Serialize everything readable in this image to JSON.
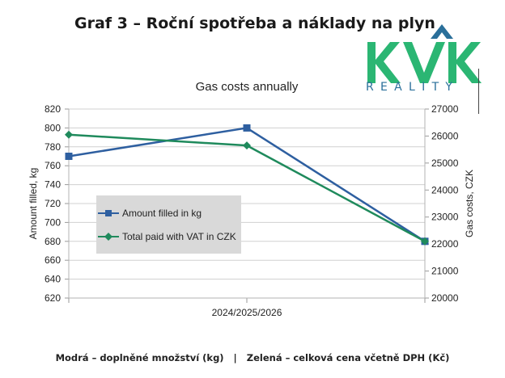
{
  "page": {
    "title": "Graf 3 – Roční spotřeba a náklady na plyn",
    "caption": "Modrá – doplněné množství (kg)   |   Zelená – celková cena včetně DPH (Kč)"
  },
  "logo": {
    "text": "KVK",
    "sub": "REALITY",
    "colors": {
      "green": "#2bb673",
      "blue": "#2a6f9a"
    }
  },
  "colors": {
    "amount": "#2e5fa0",
    "paid": "#1f8a5c",
    "grid": "#d0d0d0",
    "legend_bg": "#d9d9d9"
  },
  "chart_data": {
    "type": "line",
    "title": "Gas costs annually",
    "categories": [
      "",
      "2024/2025/2026",
      ""
    ],
    "xlabel": "",
    "ylabel": "Amount filled, kg",
    "y2label": "Gas costs, CZK",
    "ylim": [
      620,
      820
    ],
    "y2lim": [
      20000,
      27000
    ],
    "yticks": [
      "620",
      "640",
      "660",
      "680",
      "700",
      "720",
      "740",
      "760",
      "780",
      "800",
      "820"
    ],
    "y2ticks": [
      "20000",
      "21000",
      "22000",
      "23000",
      "24000",
      "25000",
      "26000",
      "27000"
    ],
    "grid": true,
    "legend_position": "inside-left",
    "series": [
      {
        "name": "Amount filled in kg",
        "axis": "left",
        "marker": "square",
        "values": [
          770,
          800,
          680
        ]
      },
      {
        "name": "Total paid with VAT in CZK",
        "axis": "right",
        "marker": "diamond",
        "values": [
          26050,
          25650,
          22100
        ]
      }
    ]
  }
}
